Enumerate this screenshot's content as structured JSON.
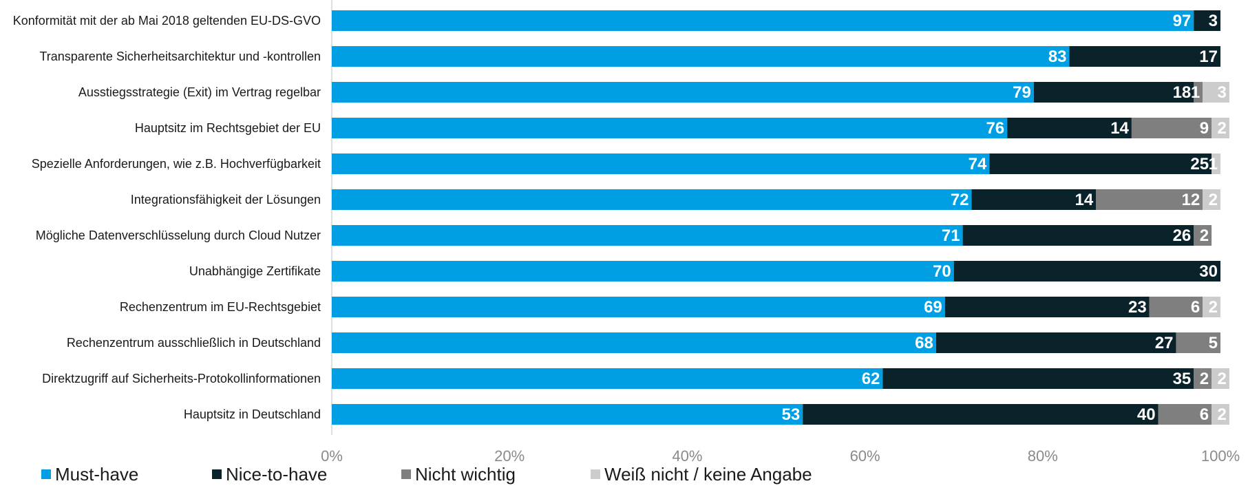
{
  "chart_data": {
    "type": "bar",
    "orientation": "horizontal",
    "stacked": true,
    "categories": [
      "Konformität mit der ab Mai 2018 geltenden EU-DS-GVO",
      "Transparente Sicherheitsarchitektur und -kontrollen",
      "Ausstiegsstrategie (Exit) im Vertrag regelbar",
      "Hauptsitz im Rechtsgebiet der EU",
      "Spezielle Anforderungen, wie z.B. Hochverfügbarkeit",
      "Integrationsfähigkeit der Lösungen",
      "Mögliche Datenverschlüsselung durch Cloud Nutzer",
      "Unabhängige Zertifikate",
      "Rechenzentrum im EU-Rechtsgebiet",
      "Rechenzentrum ausschließlich in Deutschland",
      "Direktzugriff auf Sicherheits-Protokollinformationen",
      "Hauptsitz in Deutschland"
    ],
    "series": [
      {
        "name": "Must-have",
        "color": "#009fe3",
        "values": [
          97,
          83,
          79,
          76,
          74,
          72,
          71,
          70,
          69,
          68,
          62,
          53
        ]
      },
      {
        "name": "Nice-to-have",
        "color": "#0a2229",
        "values": [
          3,
          17,
          18,
          14,
          25,
          14,
          26,
          30,
          23,
          27,
          35,
          40
        ]
      },
      {
        "name": "Nicht wichtig",
        "color": "#7f7f7f",
        "values": [
          0,
          0,
          1,
          9,
          0,
          12,
          2,
          0,
          6,
          5,
          2,
          6
        ]
      },
      {
        "name": "Weiß nicht / keine Angabe",
        "color": "#cccccc",
        "values": [
          0,
          0,
          3,
          2,
          1,
          2,
          0,
          0,
          2,
          0,
          2,
          2
        ]
      }
    ],
    "xlim": [
      0,
      100
    ],
    "x_ticks": [
      "0%",
      "20%",
      "40%",
      "60%",
      "80%",
      "100%"
    ],
    "legend_position": "bottom-left"
  }
}
